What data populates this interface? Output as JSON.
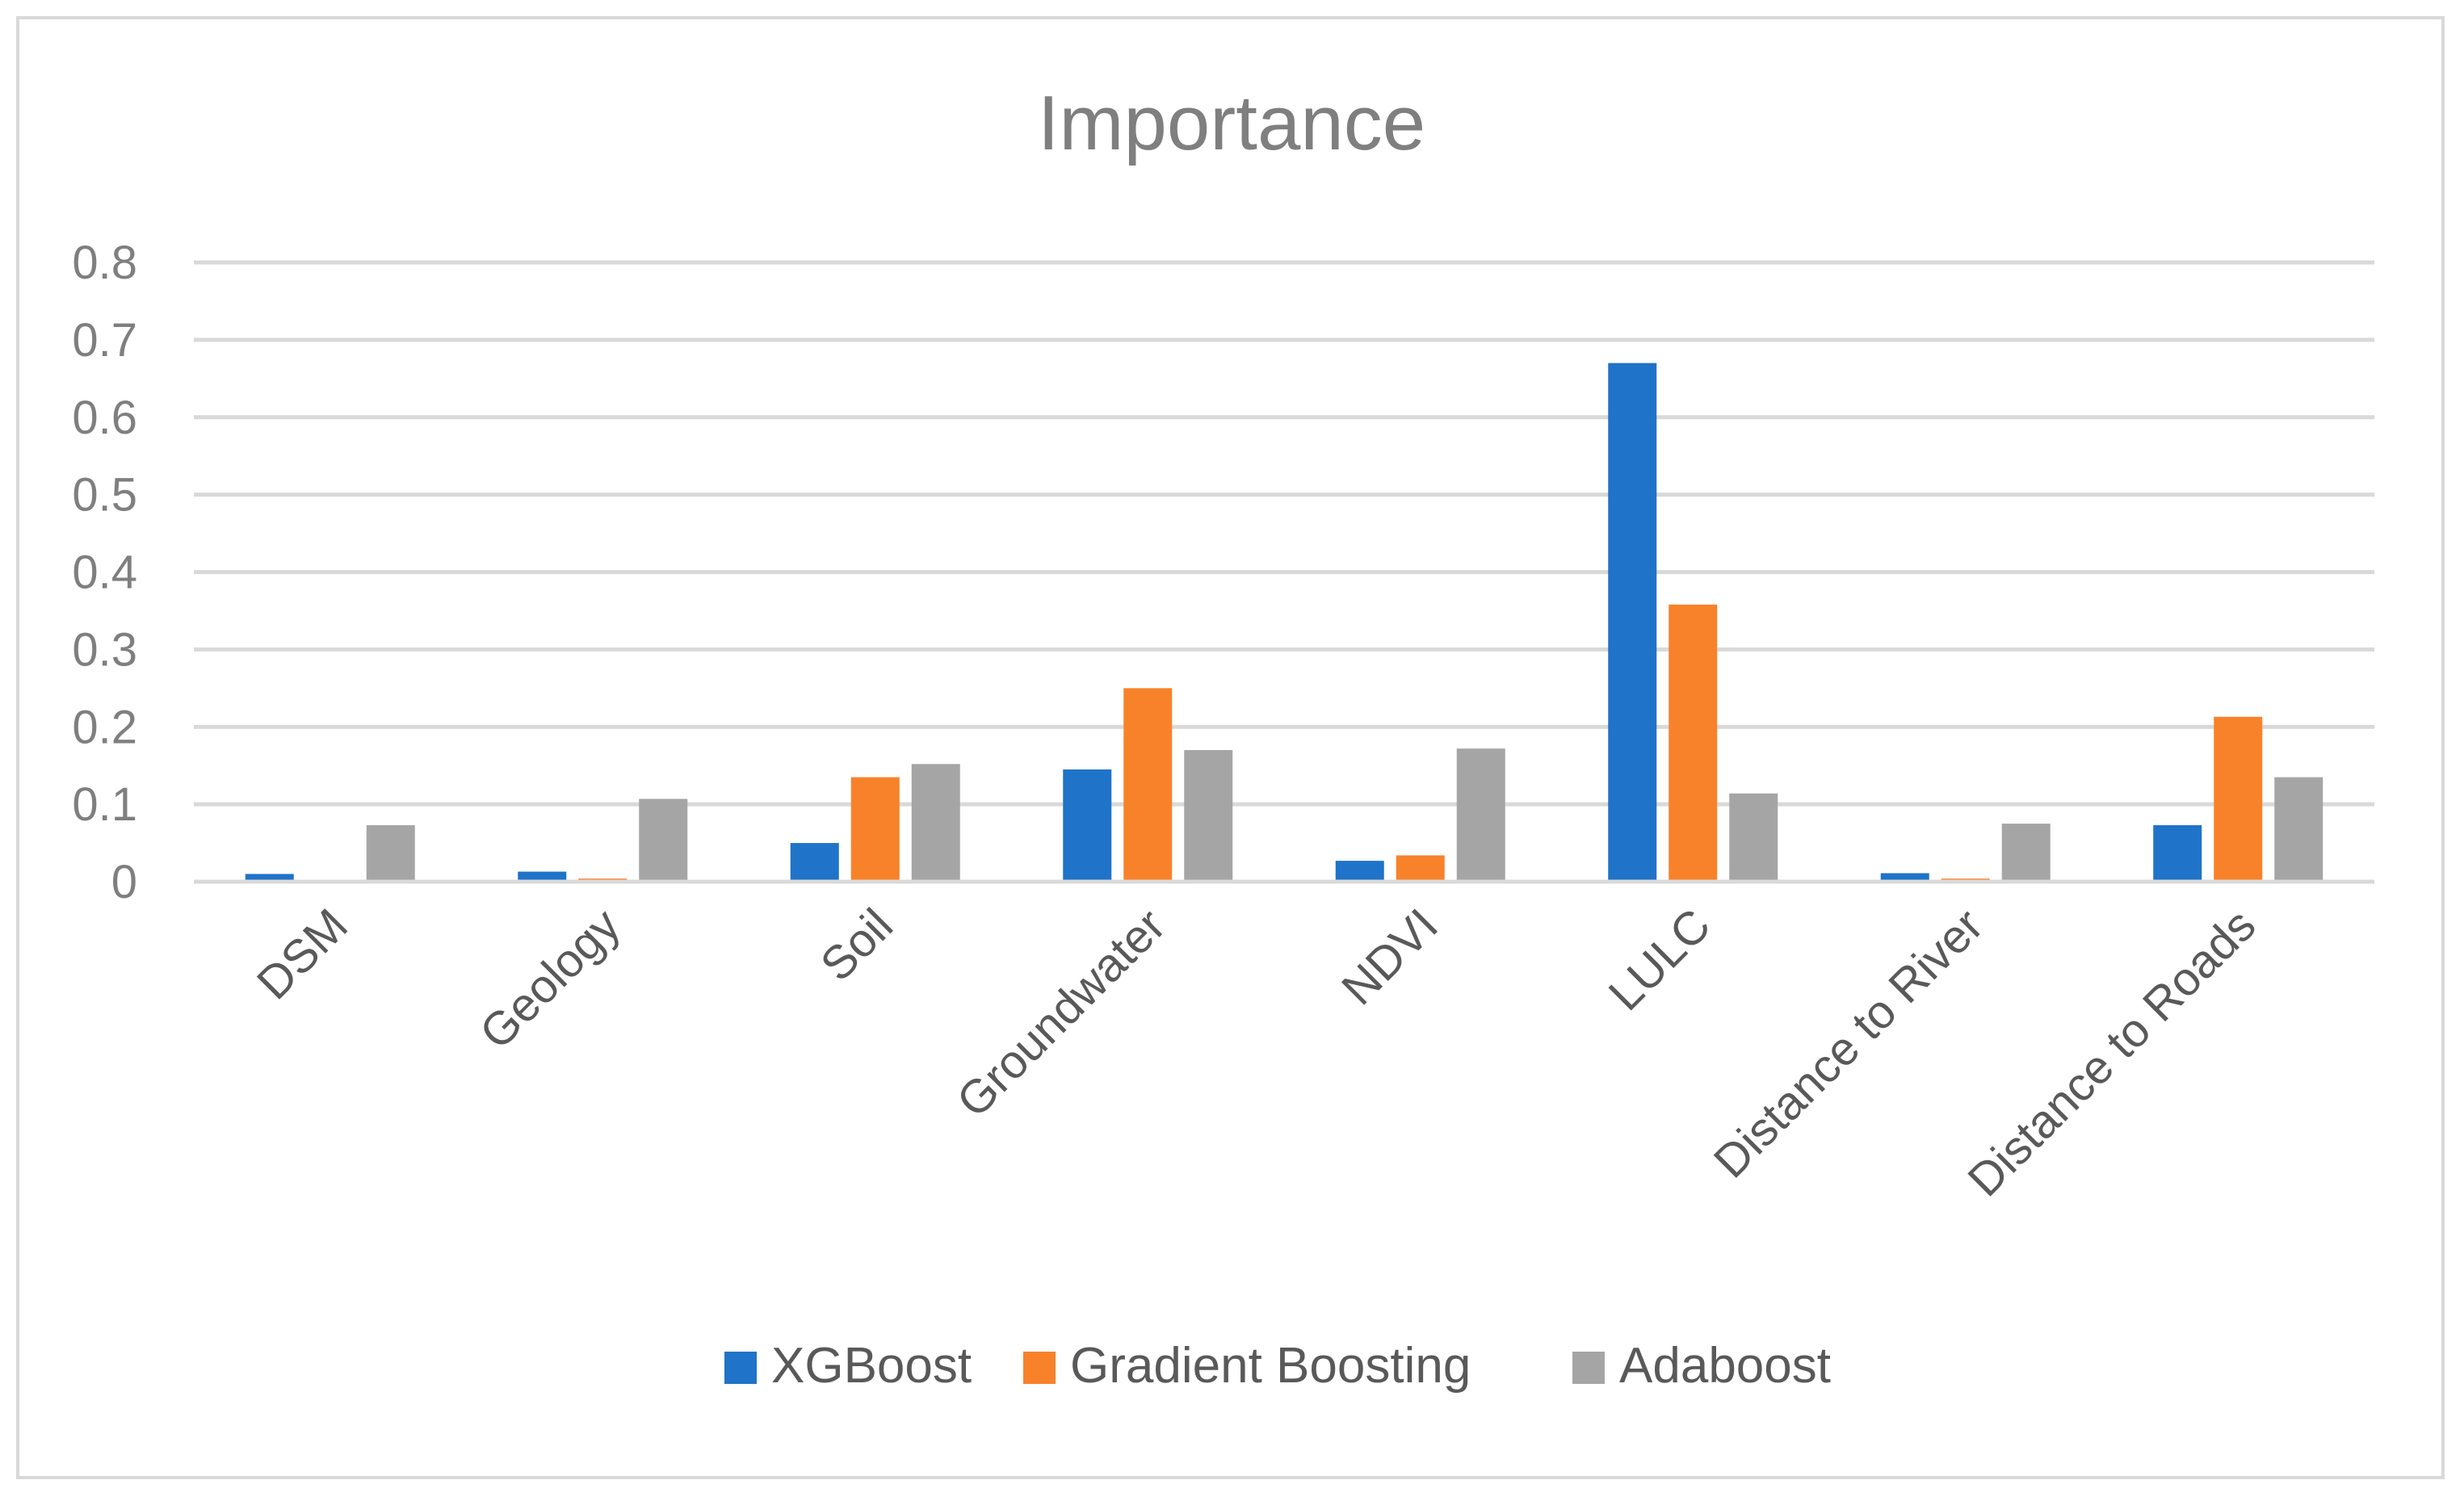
{
  "chart_data": {
    "type": "bar",
    "title": "Importance",
    "xlabel": "",
    "ylabel": "",
    "ylim": [
      0,
      0.8
    ],
    "yticks": [
      "0",
      "0.1",
      "0.2",
      "0.3",
      "0.4",
      "0.5",
      "0.6",
      "0.7",
      "0.8"
    ],
    "grid": true,
    "legend_position": "bottom",
    "categories": [
      "DSM",
      "Geology",
      "Soil",
      "Groundwater",
      "NDVI",
      "LULC",
      "Distance to River",
      "Distance to Roads"
    ],
    "series": [
      {
        "name": "XGBoost",
        "color": "#1f73c8",
        "values": [
          0.01,
          0.013,
          0.05,
          0.145,
          0.027,
          0.67,
          0.011,
          0.073
        ]
      },
      {
        "name": "Gradient Boosting",
        "color": "#f8822a",
        "values": [
          0.0,
          0.004,
          0.135,
          0.25,
          0.034,
          0.358,
          0.004,
          0.213
        ]
      },
      {
        "name": "Adaboost",
        "color": "#a5a5a5",
        "values": [
          0.073,
          0.107,
          0.152,
          0.17,
          0.172,
          0.114,
          0.075,
          0.135
        ]
      }
    ]
  }
}
